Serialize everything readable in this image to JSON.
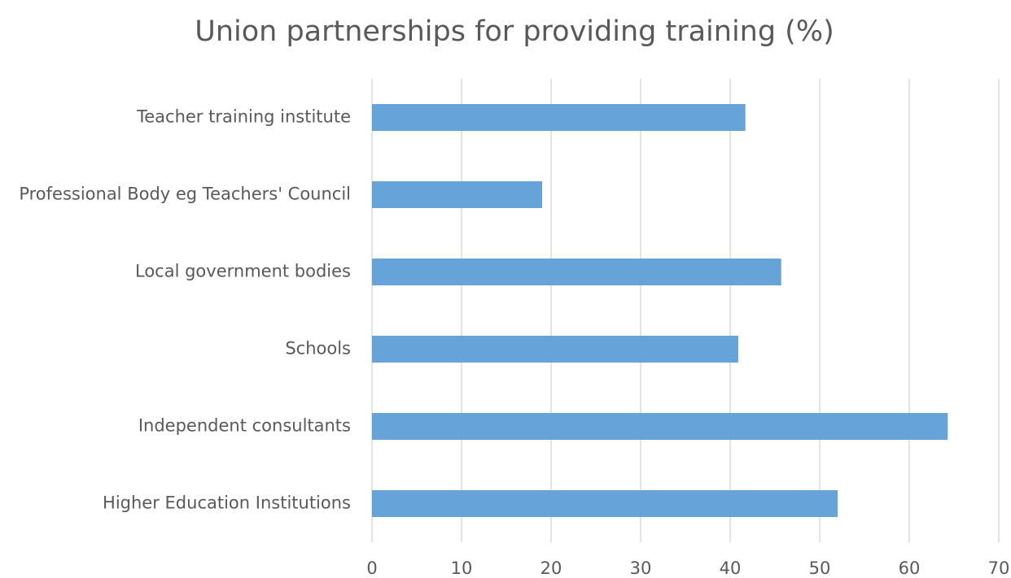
{
  "chart_data": {
    "type": "bar",
    "orientation": "horizontal",
    "title": "Union partnerships for providing training (%)",
    "categories": [
      "Teacher training institute",
      "Professional Body eg Teachers' Council",
      "Local government bodies",
      "Schools",
      "Independent consultants",
      "Higher Education Institutions"
    ],
    "values": [
      41.7,
      19,
      45.7,
      40.9,
      64.3,
      52
    ],
    "color": "#65a3d9",
    "xlim": [
      0,
      70
    ],
    "xticks": [
      0,
      10,
      20,
      30,
      40,
      50,
      60,
      70
    ],
    "grid": true
  }
}
